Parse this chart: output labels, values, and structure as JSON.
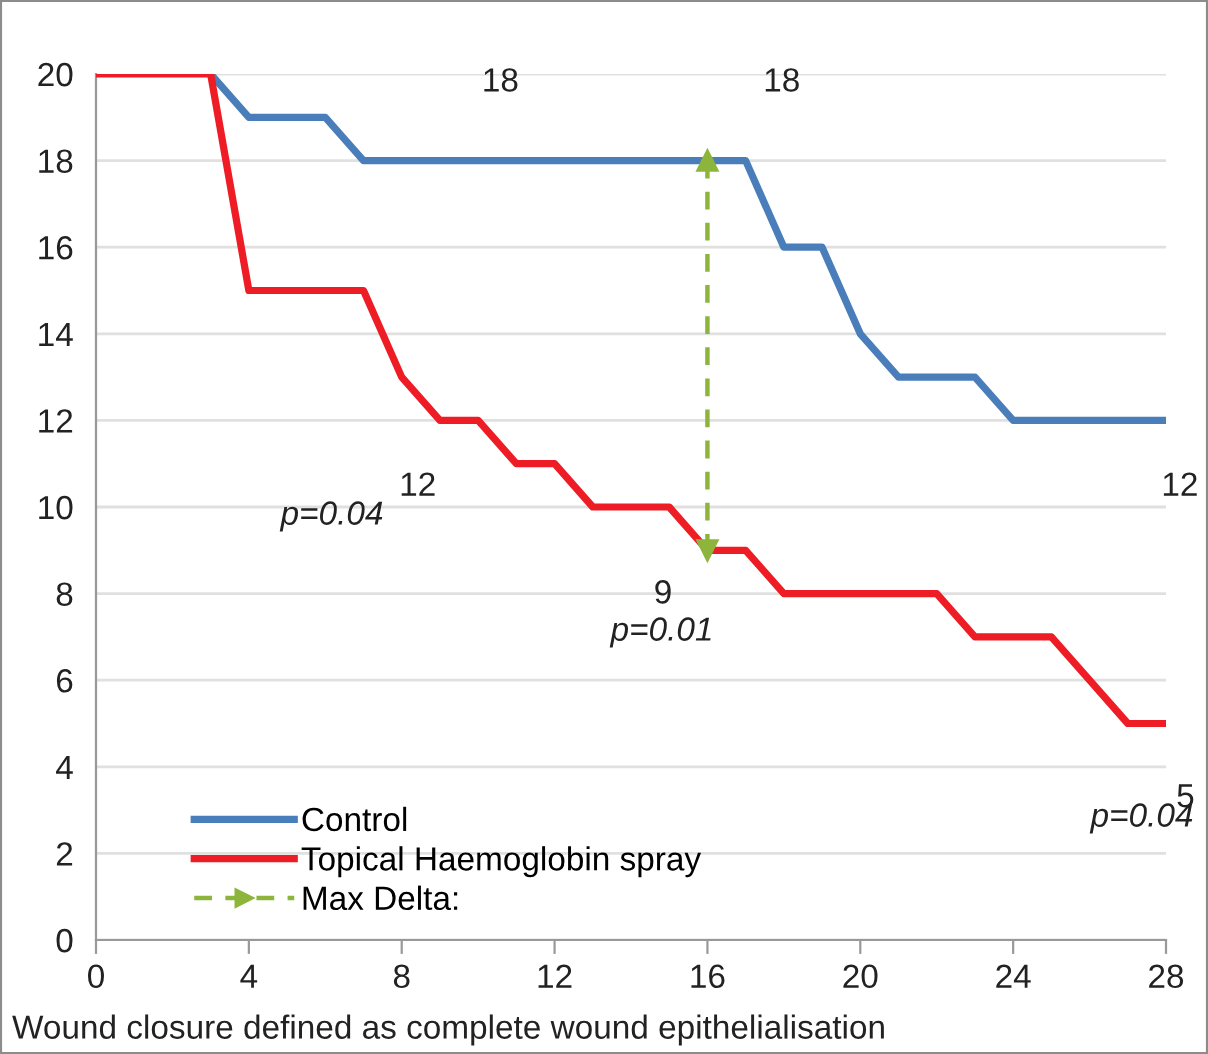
{
  "chart_data": {
    "type": "line",
    "xlim": [
      0,
      28
    ],
    "ylim": [
      0,
      20
    ],
    "xticks": [
      0,
      4,
      8,
      12,
      16,
      20,
      24,
      28
    ],
    "yticks": [
      0,
      2,
      4,
      6,
      8,
      10,
      12,
      14,
      16,
      18,
      20
    ],
    "grid": "y",
    "legend": "bottom left",
    "x": [
      0,
      1,
      2,
      3,
      4,
      5,
      6,
      7,
      8,
      9,
      10,
      11,
      12,
      13,
      14,
      15,
      16,
      17,
      18,
      19,
      20,
      21,
      22,
      23,
      24,
      25,
      26,
      27,
      28
    ],
    "series": [
      {
        "name": "Control",
        "color": "#4a7ebb",
        "values": [
          null,
          null,
          null,
          20,
          19,
          19,
          19,
          18,
          18,
          18,
          18,
          18,
          18,
          18,
          18,
          18,
          18,
          18,
          16,
          16,
          14,
          13,
          13,
          13,
          12,
          12,
          12,
          12,
          12
        ]
      },
      {
        "name": "Topical Haemoglobin spray",
        "color": "#ee1c25",
        "values": [
          20,
          20,
          20,
          20,
          15,
          15,
          15,
          15,
          13,
          12,
          12,
          11,
          11,
          10,
          10,
          10,
          9,
          9,
          8,
          8,
          8,
          8,
          8,
          7,
          7,
          7,
          6,
          5,
          5
        ]
      },
      {
        "name": "Max Delta:",
        "color": "#8db53c",
        "x": [
          16,
          16
        ],
        "values": [
          18,
          9
        ],
        "line_style": "dashed",
        "marker": "triangle"
      }
    ],
    "annotations": [
      {
        "text": "18",
        "x": 10,
        "y": 18
      },
      {
        "text": "18",
        "x": 17,
        "y": 18
      },
      {
        "text": "12",
        "x": 28,
        "y": 12
      },
      {
        "text": "12",
        "x": 9,
        "y": 12
      },
      "p=0.04",
      {
        "text": "9",
        "x": 16,
        "y": 9
      },
      "p=0.01",
      {
        "text": "5",
        "x": 28,
        "y": 5
      },
      "p=0.04",
      "Wound closure defined as complete wound epithelialisation"
    ]
  }
}
